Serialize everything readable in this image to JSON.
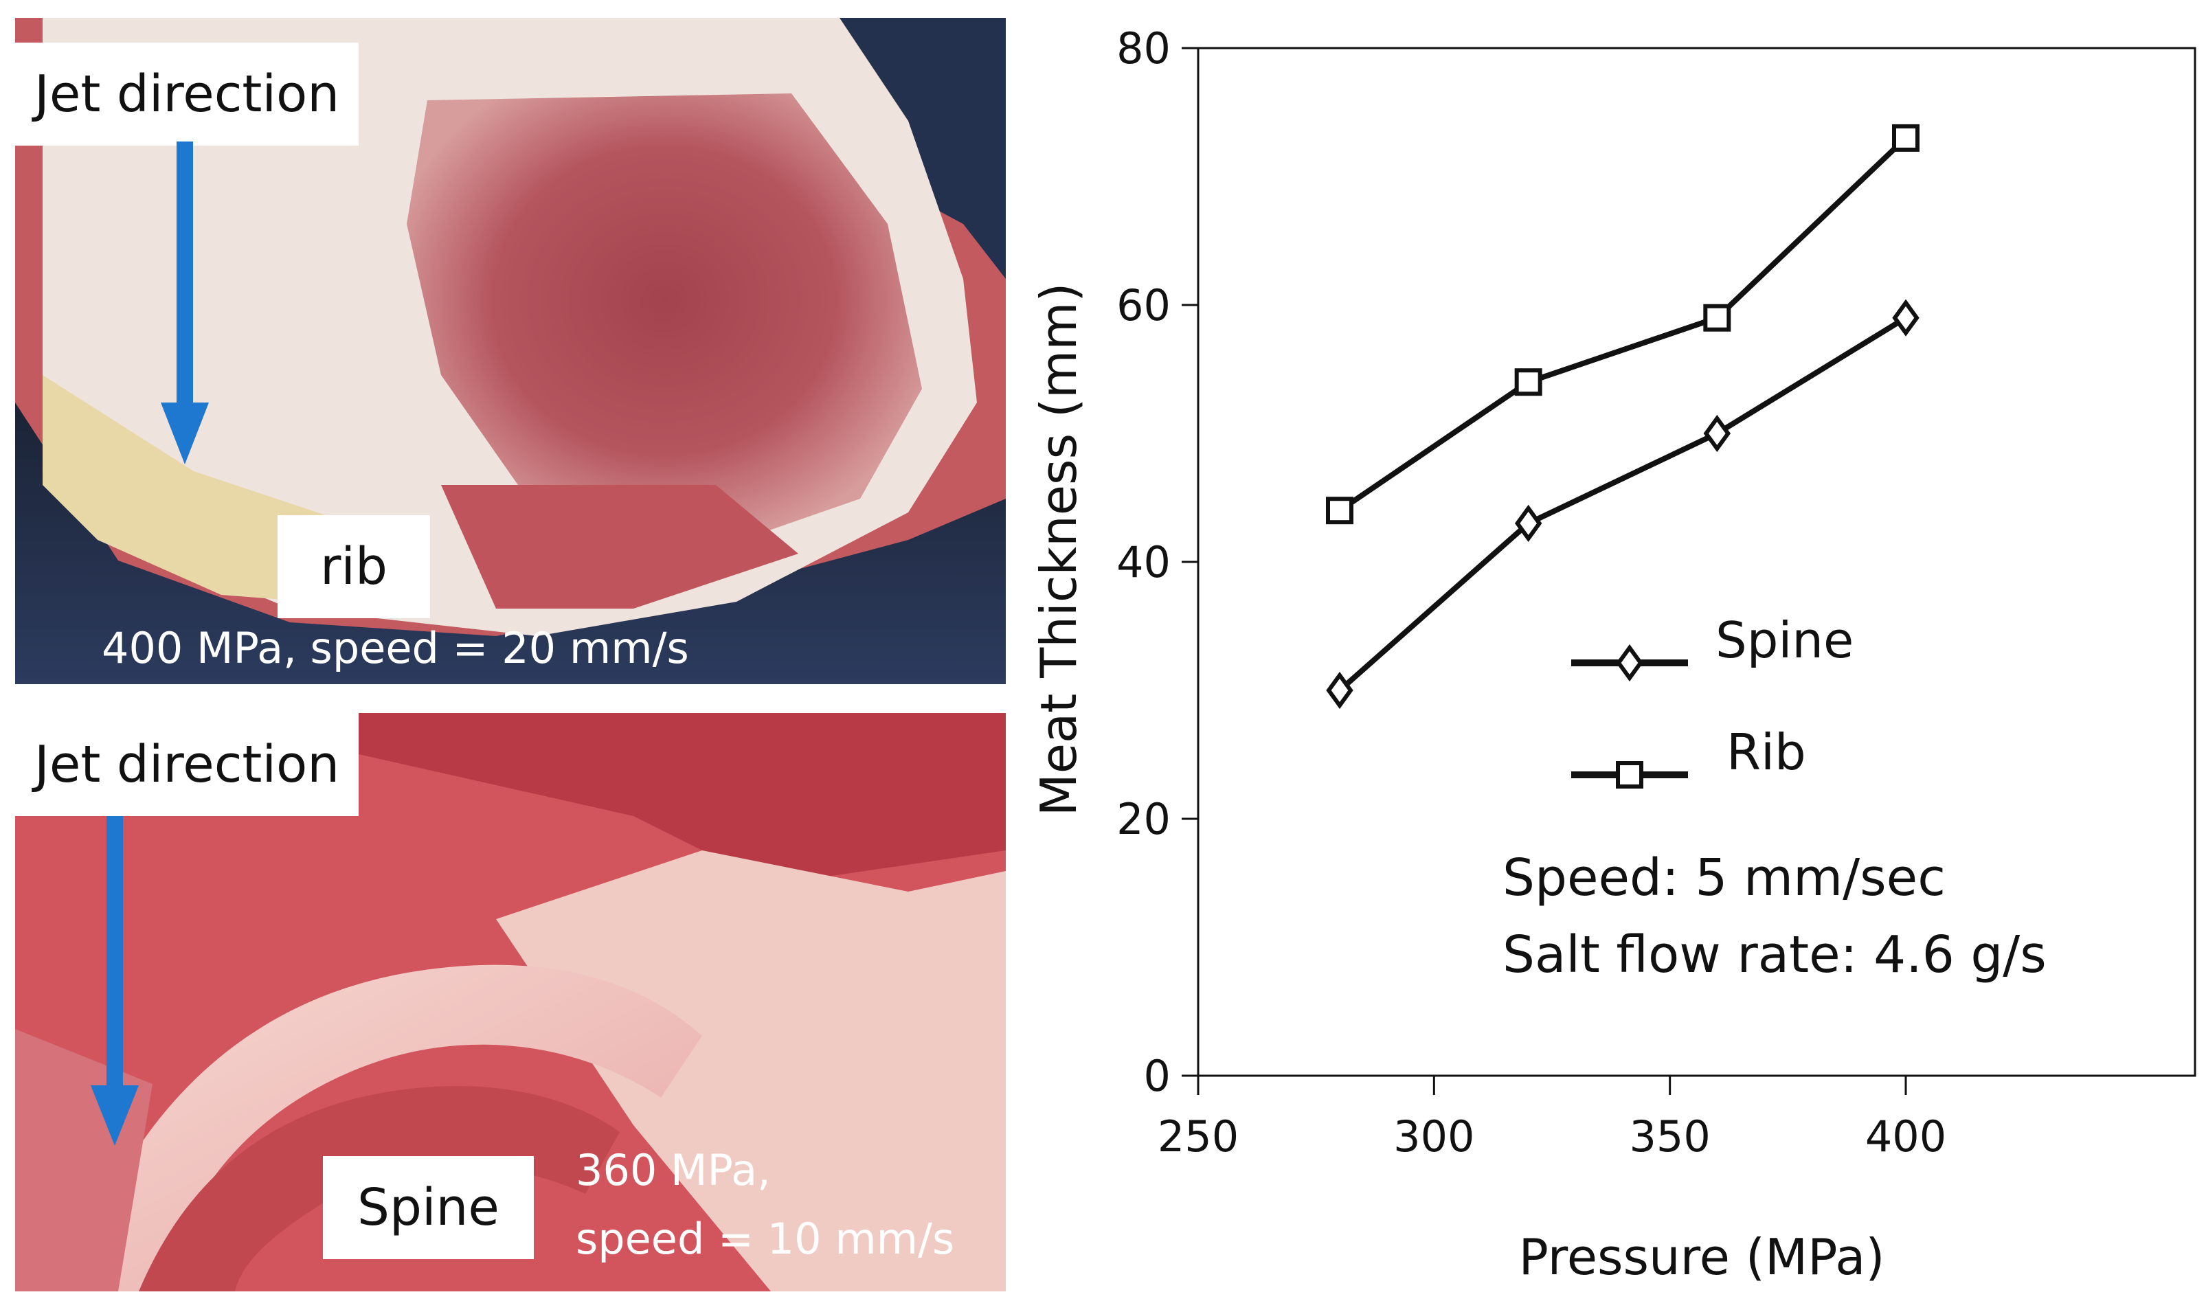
{
  "photos": [
    {
      "direction_label": "Jet direction",
      "part_label": "rib",
      "conditions": [
        "400 MPa, speed = 20 mm/s"
      ]
    },
    {
      "direction_label": "Jet direction",
      "part_label": "Spine",
      "conditions": [
        "360 MPa,",
        "speed = 10 mm/s"
      ]
    }
  ],
  "colors": {
    "arrow": "#1f78d0",
    "line": "#111111",
    "marker_fill": "#ffffff"
  },
  "chart_data": {
    "type": "line",
    "xlabel": "Pressure (MPa)",
    "ylabel": "Meat Thickness (mm)",
    "xlim": [
      250,
      400
    ],
    "ylim": [
      0,
      80
    ],
    "x_ticks": [
      "250",
      "300",
      "350",
      "400"
    ],
    "y_ticks": [
      "0",
      "20",
      "40",
      "60",
      "80"
    ],
    "grid": false,
    "legend_position": "center-right",
    "series": [
      {
        "name": "Spine",
        "marker": "diamond",
        "x": [
          280,
          320,
          360,
          400
        ],
        "y": [
          30,
          43,
          50,
          59
        ]
      },
      {
        "name": "Rib",
        "marker": "square",
        "x": [
          280,
          320,
          360,
          400
        ],
        "y": [
          44,
          54,
          59,
          73
        ]
      }
    ],
    "annotations": [
      "Speed: 5 mm/sec",
      "Salt flow rate: 4.6 g/s"
    ]
  }
}
